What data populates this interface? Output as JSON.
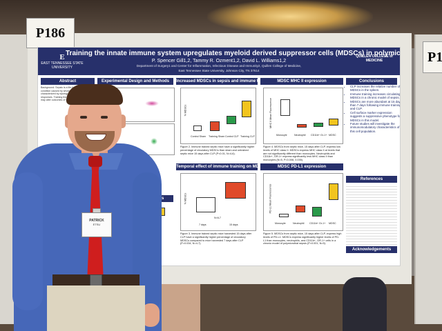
{
  "board_codes": {
    "left": "P186",
    "right": "P1"
  },
  "poster": {
    "title": "Training the innate immune system upregulates myeloid derived suppressor cells (MDSCs) in polymicrobial sepsis.",
    "authors": "P. Spencer Gill1,2, Tammy R. Ozment1,2, David L. Williams1,2",
    "affiliation_1": "Department of Surgery1 and Center for Inflammation, Infectious Disease and Immunity2, Quillen College of Medicine,",
    "affiliation_2": "East Tennessee State University, Johnson City, TN 37614",
    "logo_left": "EAST TENNESSEE STATE UNIVERSITY",
    "logo_right": "QUILLEN COLLEGE of MEDICINE",
    "sections": {
      "abstract": "Abstract",
      "design": "Experimental Design and Methods",
      "immune_training": "Increased MDSCs in sepsis and immune training",
      "mhc": "MDSC MHC II expression",
      "conclusions": "Conclusions",
      "temporal": "Temporal effect of immune training on MDSCs",
      "pdl1": "MDSC PD-L1 expression",
      "references": "References",
      "sepsis": "sepsis",
      "acknowledgements": "Acknowledgements"
    },
    "abstract_text": "Background: Sepsis is a life-threatening condition caused by severe infection... characterized by dysregulated immune responses. Training the innate immune system may alter outcomes of sepsis.",
    "conclusions": [
      "CLP increases the relative number of MDSCs in the spleen.",
      "Immune training increases circulating MDSCs in a chronic model of sepsis.",
      "MDSCs are more abundant at 15 days than 7 days following immune training and CLP.",
      "Cell surface marker expression suggests a suppressive phenotype for MDSCs in this model.",
      "Future studies will investigate the immunomodulatory characteristics of this cell population."
    ],
    "fig2_caption": "Figure 2. Immune trained septic mice have a significantly higher percentage of circulatory MDSCs than sham and untrained septic mice 15 days after CLP (P<0.01, N=4-6).",
    "fig3_caption": "Figure 3. Immune trained septic mice harvested 15 days after CLP have a significantly higher percentage of circulatory MDSCs compared to mice harvested 7 days after CLP (P=0.034, N=4-7).",
    "fig4_caption": "Figure 4. MDSCs from septic mice, 15 days after CLP, express low levels of MHC class II. MDSCs express MHC class II at levels that are not significantly different than monocytes. Neutrophils and CD11b+, GR-1+ express significantly less MHC class II than monocytes (N=5, P=0.008, 0.035).",
    "fig5_caption": "Figure 5. MDSCs from septic mice, 15 days after CLP, express high levels of PD-L1. MDSCs express significantly higher levels of PD-L1 than monocytes, neutrophils, and CD11b+, GR-1+ cells in a chronic model of polymicrobial sepsis (P<0.001, N=5).",
    "fig2": {
      "ylabel": "% MDSCs",
      "categories": [
        "Control Sham",
        "Training Sham",
        "Control CLP",
        "Training CLP"
      ]
    },
    "fig3": {
      "ylabel": "% MDSCs",
      "categories": [
        "7 days",
        "15 days"
      ],
      "annotation": "N=6-7"
    },
    "fig4": {
      "ylabel": "MHC II Mean Fluorescence",
      "categories": [
        "Monocyte",
        "Neutrophil",
        "CD11b+ Gr-1+",
        "MDSC"
      ]
    },
    "fig5": {
      "ylabel": "PD-L1 Mean Fluorescence",
      "categories": [
        "Monocyte",
        "Neutrophil",
        "CD11b+ Gr-1+",
        "MDSC"
      ]
    }
  },
  "badge": {
    "name": "PATRICK",
    "sub": "ETSU"
  }
}
